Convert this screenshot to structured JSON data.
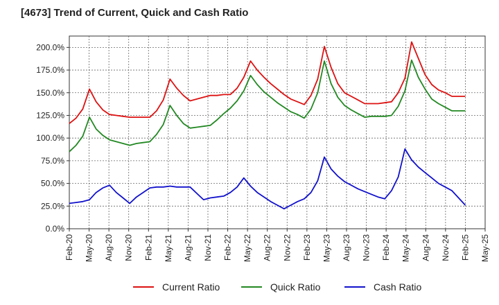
{
  "chart_data": {
    "type": "line",
    "title": "[4673]  Trend of Current, Quick and Cash Ratio",
    "xlabel": "",
    "ylabel": "",
    "ylim": [
      0,
      212.5
    ],
    "yticks": [
      0,
      25,
      50,
      75,
      100,
      125,
      150,
      175,
      200
    ],
    "ytick_labels": [
      "0.0%",
      "25.0%",
      "50.0%",
      "75.0%",
      "100.0%",
      "125.0%",
      "150.0%",
      "175.0%",
      "200.0%"
    ],
    "xtick_labels": [
      "Feb-20",
      "May-20",
      "Aug-20",
      "Nov-20",
      "Feb-21",
      "May-21",
      "Aug-21",
      "Nov-21",
      "Feb-22",
      "May-22",
      "Aug-22",
      "Nov-22",
      "Feb-23",
      "May-23",
      "Aug-23",
      "Nov-23",
      "Feb-24",
      "May-24",
      "Aug-24",
      "Nov-24",
      "Feb-25",
      "May-25"
    ],
    "grid": true,
    "legend": "bottom",
    "series": [
      {
        "name": "Current Ratio",
        "color": "#dd1111",
        "values": [
          116,
          122,
          132,
          154,
          140,
          131,
          126,
          125,
          124,
          123,
          123,
          123,
          123,
          130,
          142,
          165,
          155,
          147,
          141,
          143,
          145,
          147,
          147,
          148,
          148,
          155,
          167,
          185,
          175,
          167,
          160,
          154,
          148,
          143,
          140,
          137,
          147,
          165,
          201,
          178,
          160,
          150,
          146,
          142,
          138,
          138,
          138,
          139,
          140,
          150,
          166,
          206,
          188,
          170,
          159,
          153,
          150,
          146,
          146,
          146
        ]
      },
      {
        "name": "Quick Ratio",
        "color": "#228822",
        "values": [
          85,
          92,
          102,
          123,
          110,
          103,
          98,
          96,
          94,
          92,
          94,
          95,
          96,
          104,
          115,
          136,
          125,
          116,
          111,
          112,
          113,
          114,
          120,
          127,
          133,
          141,
          152,
          169,
          159,
          151,
          145,
          139,
          134,
          129,
          126,
          122,
          132,
          150,
          185,
          160,
          145,
          136,
          131,
          127,
          123,
          124,
          124,
          124,
          125,
          135,
          152,
          186,
          167,
          154,
          143,
          138,
          134,
          130,
          130,
          130
        ]
      },
      {
        "name": "Cash Ratio",
        "color": "#1111cc",
        "values": [
          28,
          29,
          30,
          32,
          40,
          45,
          48,
          40,
          34,
          28,
          35,
          40,
          45,
          46,
          46,
          47,
          46,
          46,
          46,
          39,
          32,
          34,
          35,
          36,
          40,
          46,
          56,
          47,
          40,
          35,
          30,
          26,
          22,
          26,
          30,
          33,
          40,
          53,
          79,
          66,
          58,
          52,
          48,
          44,
          41,
          38,
          35,
          33,
          42,
          57,
          88,
          76,
          68,
          62,
          56,
          50,
          46,
          42,
          34,
          26
        ]
      }
    ]
  }
}
